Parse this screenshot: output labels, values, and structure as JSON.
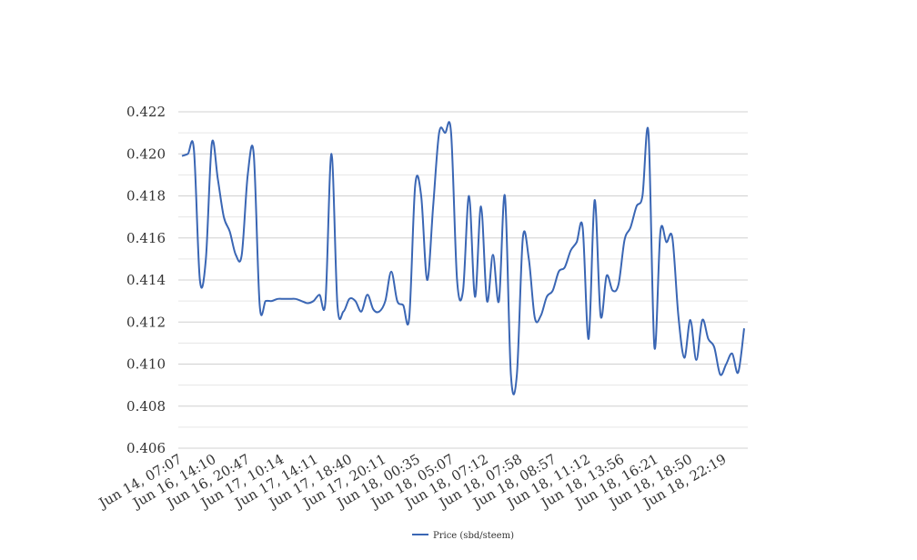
{
  "chart_data": {
    "type": "line",
    "title": "",
    "xlabel": "",
    "ylabel": "",
    "ylim": [
      0.406,
      0.422
    ],
    "yticks": [
      "0.406",
      "0.408",
      "0.410",
      "0.412",
      "0.414",
      "0.416",
      "0.418",
      "0.420",
      "0.422"
    ],
    "ytick_values": [
      0.406,
      0.408,
      0.41,
      0.412,
      0.414,
      0.416,
      0.418,
      0.42,
      0.422
    ],
    "minor_grid": true,
    "legend_position": "bottom",
    "x_tick_labels": [
      "Jun 14, 07:07",
      "Jun 16, 14:10",
      "Jun 16, 20:47",
      "Jun 17, 10:14",
      "Jun 17, 14:11",
      "Jun 17, 18:40",
      "Jun 17, 20:11",
      "Jun 18, 00:35",
      "Jun 18, 05:07",
      "Jun 18, 07:12",
      "Jun 18, 07:58",
      "Jun 18, 08:57",
      "Jun 18, 11:12",
      "Jun 18, 13:56",
      "Jun 18, 16:21",
      "Jun 18, 18:50",
      "Jun 18, 22:19"
    ],
    "colors": {
      "series": "#3a66b4",
      "grid": "#d0d0d0",
      "minor_grid": "#e6e6e6"
    },
    "series": [
      {
        "name": "Price (sbd/steem)",
        "values": [
          0.4199,
          0.42,
          0.4202,
          0.414,
          0.415,
          0.4205,
          0.4188,
          0.417,
          0.4163,
          0.4152,
          0.4152,
          0.419,
          0.42,
          0.4128,
          0.413,
          0.413,
          0.4131,
          0.4131,
          0.4131,
          0.4131,
          0.413,
          0.4129,
          0.413,
          0.4133,
          0.413,
          0.42,
          0.4128,
          0.4125,
          0.4131,
          0.413,
          0.4125,
          0.4133,
          0.4126,
          0.4125,
          0.413,
          0.4144,
          0.413,
          0.4128,
          0.4122,
          0.4185,
          0.418,
          0.414,
          0.4175,
          0.421,
          0.421,
          0.421,
          0.414,
          0.4135,
          0.418,
          0.4132,
          0.4175,
          0.413,
          0.4152,
          0.413,
          0.418,
          0.4095,
          0.4095,
          0.416,
          0.415,
          0.4122,
          0.4123,
          0.4132,
          0.4135,
          0.4144,
          0.4146,
          0.4154,
          0.4158,
          0.4165,
          0.4112,
          0.4178,
          0.4123,
          0.4142,
          0.4135,
          0.4138,
          0.4159,
          0.4165,
          0.4175,
          0.418,
          0.421,
          0.4108,
          0.4163,
          0.4158,
          0.416,
          0.4123,
          0.4103,
          0.4121,
          0.4102,
          0.4121,
          0.4112,
          0.4108,
          0.4095,
          0.41,
          0.4105,
          0.4096,
          0.4117
        ]
      }
    ]
  }
}
